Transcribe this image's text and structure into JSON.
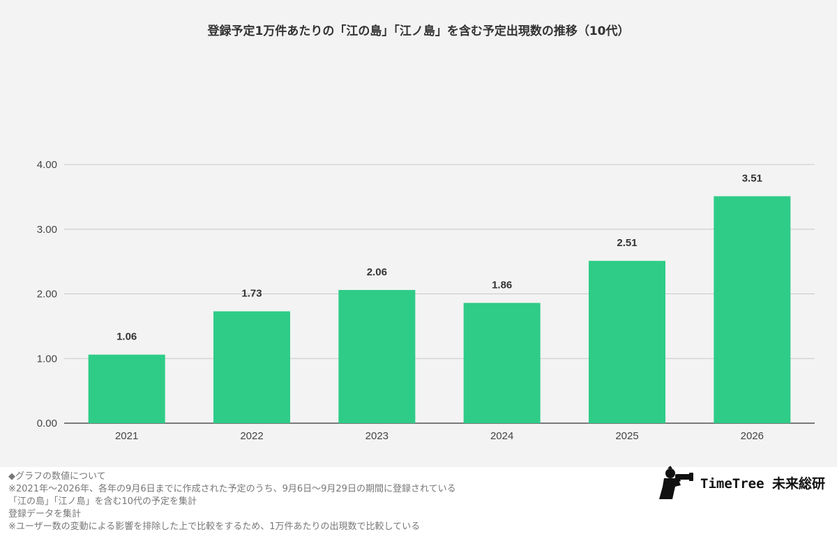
{
  "chart_data": {
    "type": "bar",
    "title": "登録予定1万件あたりの「江の島」「江ノ島」を含む予定出現数の推移（10代）",
    "categories": [
      "2021",
      "2022",
      "2023",
      "2024",
      "2025",
      "2026"
    ],
    "values": [
      1.06,
      1.73,
      2.06,
      1.86,
      2.51,
      3.51
    ],
    "value_labels": [
      "1.06",
      "1.73",
      "2.06",
      "1.86",
      "2.51",
      "3.51"
    ],
    "y_ticks": [
      "0.00",
      "1.00",
      "2.00",
      "3.00",
      "4.00"
    ],
    "ylim": [
      0,
      4
    ],
    "xlabel": "",
    "ylabel": "",
    "grid": true,
    "bar_color": "#2ecc87"
  },
  "notes": [
    "◆グラフの数値について",
    "※2021年〜2026年、各年の9月6日までに作成された予定のうち、9月6日〜9月29日の期間に登録されている",
    "「江の島」「江ノ島」を含む10代の予定を集計",
    "登録データを集計",
    "※ユーザー数の変動による影響を排除した上で比較をするため、1万件あたりの出現数で比較している"
  ],
  "logo": {
    "text": "TimeTree 未来総研",
    "icon": "photographer-silhouette-icon"
  }
}
